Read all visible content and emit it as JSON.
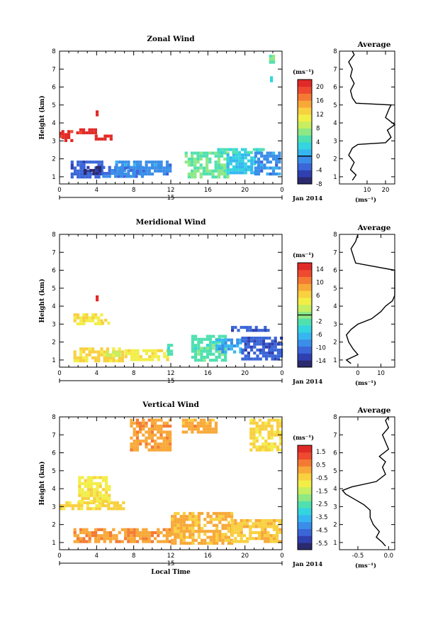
{
  "chart_data": [
    {
      "type": "heatmap",
      "title": "Zonal Wind",
      "xlabel": "",
      "ylabel": "Height (km)",
      "xlim": [
        0,
        24
      ],
      "ylim": [
        0.6,
        8
      ],
      "x_ticks": [
        "0",
        "4",
        "8",
        "12",
        "16",
        "20",
        "0"
      ],
      "y_ticks": [
        "1",
        "2",
        "3",
        "4",
        "5",
        "6",
        "7",
        "8"
      ],
      "date_marker": "15",
      "date_label": "Jan 2014",
      "colorbar": {
        "unit": "(ms⁻¹)",
        "vmin": -8,
        "vmax": 22,
        "tick_values": [
          20,
          16,
          12,
          8,
          4,
          0,
          -4,
          -8
        ],
        "tick_labels": [
          "20",
          "16",
          "12",
          "8",
          "4",
          "0",
          "-4",
          "-8"
        ],
        "zero_line": 0
      },
      "regions": [
        {
          "x": [
            0.2,
            1.4
          ],
          "y": [
            3.1,
            3.6
          ],
          "value": 21
        },
        {
          "x": [
            1.8,
            3.8
          ],
          "y": [
            3.4,
            3.7
          ],
          "value": 21
        },
        {
          "x": [
            3.8,
            5.5
          ],
          "y": [
            3.15,
            3.35
          ],
          "value": 21
        },
        {
          "x": [
            3.9,
            4.1
          ],
          "y": [
            4.4,
            4.7
          ],
          "value": 21
        },
        {
          "x": [
            0.0,
            0.2
          ],
          "y": [
            3.3,
            3.5
          ],
          "value": 21
        },
        {
          "x": [
            1.2,
            4.6
          ],
          "y": [
            1.0,
            1.9
          ],
          "value": -3
        },
        {
          "x": [
            4.6,
            9.0
          ],
          "y": [
            1.0,
            1.6
          ],
          "value": -2
        },
        {
          "x": [
            6.0,
            12.0
          ],
          "y": [
            1.1,
            1.9
          ],
          "value": -1
        },
        {
          "x": [
            2.6,
            4.4
          ],
          "y": [
            1.2,
            1.6
          ],
          "value": -7
        },
        {
          "x": [
            13.5,
            18.0
          ],
          "y": [
            1.0,
            2.4
          ],
          "value": 6
        },
        {
          "x": [
            18.0,
            21.0
          ],
          "y": [
            1.3,
            2.3
          ],
          "value": 2
        },
        {
          "x": [
            17.0,
            22.0
          ],
          "y": [
            2.4,
            2.6
          ],
          "value": 4
        },
        {
          "x": [
            21.0,
            23.8
          ],
          "y": [
            1.2,
            2.4
          ],
          "value": -1
        },
        {
          "x": [
            22.6,
            23.0
          ],
          "y": [
            7.4,
            7.8
          ],
          "value": 6
        },
        {
          "x": [
            22.7,
            22.9
          ],
          "y": [
            6.4,
            6.6
          ],
          "value": 3
        }
      ],
      "average_profile": {
        "title": "Average",
        "xlabel": "(ms⁻¹)",
        "x_ticks": [
          "10",
          "20"
        ],
        "xlim": [
          -5,
          25
        ],
        "heights": [
          0.8,
          1.1,
          1.4,
          1.8,
          2.2,
          2.6,
          2.8,
          2.9,
          3.2,
          3.6,
          3.9,
          4.3,
          4.8,
          5.0,
          5.1,
          5.4,
          5.8,
          6.2,
          6.6,
          7.0,
          7.4,
          7.8,
          8.0
        ],
        "values": [
          2,
          4,
          1,
          3,
          0,
          2,
          5,
          20,
          23,
          21,
          25,
          20,
          22,
          23,
          4,
          2,
          1,
          3,
          1,
          2,
          0,
          3,
          2
        ]
      }
    },
    {
      "type": "heatmap",
      "title": "Meridional Wind",
      "xlabel": "",
      "ylabel": "Height (km)",
      "xlim": [
        0,
        24
      ],
      "ylim": [
        0.6,
        8
      ],
      "x_ticks": [
        "0",
        "4",
        "8",
        "12",
        "16",
        "20",
        "0"
      ],
      "y_ticks": [
        "1",
        "2",
        "3",
        "4",
        "5",
        "6",
        "7",
        "8"
      ],
      "date_marker": "15",
      "date_label": "Jan 2014",
      "colorbar": {
        "unit": "(ms⁻¹)",
        "vmin": -16,
        "vmax": 16,
        "tick_values": [
          14,
          10,
          6,
          2,
          -2,
          -6,
          -10,
          -14
        ],
        "tick_labels": [
          "14",
          "10",
          "6",
          "2",
          "-2",
          "-6",
          "-10",
          "-14"
        ],
        "zero_line": 0
      },
      "regions": [
        {
          "x": [
            1.5,
            4.5
          ],
          "y": [
            3.1,
            3.6
          ],
          "value": 5
        },
        {
          "x": [
            3.9,
            4.1
          ],
          "y": [
            4.4,
            4.6
          ],
          "value": 14
        },
        {
          "x": [
            4.5,
            5.5
          ],
          "y": [
            3.1,
            3.3
          ],
          "value": 5
        },
        {
          "x": [
            0.0,
            0.2
          ],
          "y": [
            3.2,
            3.4
          ],
          "value": 5
        },
        {
          "x": [
            1.5,
            6.7
          ],
          "y": [
            1.0,
            1.7
          ],
          "value": 6
        },
        {
          "x": [
            7.0,
            11.6
          ],
          "y": [
            1.0,
            1.6
          ],
          "value": 5
        },
        {
          "x": [
            5.0,
            6.5
          ],
          "y": [
            1.2,
            1.5
          ],
          "value": 3
        },
        {
          "x": [
            11.6,
            12.2
          ],
          "y": [
            1.4,
            1.9
          ],
          "value": -3
        },
        {
          "x": [
            14.2,
            17.8
          ],
          "y": [
            1.0,
            2.4
          ],
          "value": -2
        },
        {
          "x": [
            16.8,
            19.6
          ],
          "y": [
            1.4,
            2.2
          ],
          "value": -7
        },
        {
          "x": [
            19.6,
            23.8
          ],
          "y": [
            1.1,
            2.3
          ],
          "value": -11
        },
        {
          "x": [
            18.5,
            22.5
          ],
          "y": [
            2.7,
            2.9
          ],
          "value": -11
        }
      ],
      "average_profile": {
        "title": "Average",
        "xlabel": "(ms⁻¹)",
        "x_ticks": [
          "0",
          "10"
        ],
        "xlim": [
          -8,
          16
        ],
        "heights": [
          0.8,
          1.0,
          1.3,
          1.6,
          2.0,
          2.4,
          2.7,
          3.0,
          3.3,
          3.7,
          4.0,
          4.3,
          4.6,
          5.0,
          5.5,
          6.0,
          6.4,
          6.8,
          7.2,
          7.6,
          8.0
        ],
        "values": [
          -3,
          -5,
          0,
          -2,
          -4,
          -5,
          -3,
          0,
          6,
          10,
          12,
          15,
          16,
          16,
          16,
          16,
          -1,
          -2,
          -3,
          -1,
          0
        ]
      }
    },
    {
      "type": "heatmap",
      "title": "Vertical Wind",
      "xlabel": "Local Time",
      "ylabel": "Height (km)",
      "xlim": [
        0,
        24
      ],
      "ylim": [
        0.6,
        8
      ],
      "x_ticks": [
        "0",
        "4",
        "8",
        "12",
        "16",
        "20",
        "0"
      ],
      "y_ticks": [
        "1",
        "2",
        "3",
        "4",
        "5",
        "6",
        "7",
        "8"
      ],
      "date_marker": "15",
      "date_label": "Jan 2014",
      "colorbar": {
        "unit": "(ms⁻¹)",
        "vmin": -6,
        "vmax": 2,
        "tick_values": [
          1.5,
          0.5,
          -0.5,
          -1.5,
          -2.5,
          -3.5,
          -4.5,
          -5.5
        ],
        "tick_labels": [
          "1.5",
          "0.5",
          "-0.5",
          "-1.5",
          "-2.5",
          "-3.5",
          "-4.5",
          "-5.5"
        ],
        "zero_line": null
      },
      "regions": [
        {
          "x": [
            1.5,
            11.8
          ],
          "y": [
            1.0,
            1.8
          ],
          "value": 0.3
        },
        {
          "x": [
            12.0,
            18.5
          ],
          "y": [
            1.0,
            2.7
          ],
          "value": 0.0
        },
        {
          "x": [
            18.5,
            23.8
          ],
          "y": [
            1.0,
            2.3
          ],
          "value": -0.3
        },
        {
          "x": [
            0.0,
            6.8
          ],
          "y": [
            2.9,
            3.3
          ],
          "value": -0.5
        },
        {
          "x": [
            2.0,
            5.5
          ],
          "y": [
            3.3,
            4.7
          ],
          "value": -0.8
        },
        {
          "x": [
            7.6,
            12.0
          ],
          "y": [
            6.2,
            7.9
          ],
          "value": 0.2
        },
        {
          "x": [
            13.2,
            16.8
          ],
          "y": [
            7.2,
            7.9
          ],
          "value": 0.1
        },
        {
          "x": [
            20.5,
            23.8
          ],
          "y": [
            6.2,
            7.9
          ],
          "value": -0.5
        }
      ],
      "average_profile": {
        "title": "Average",
        "xlabel": "(ms⁻¹)",
        "x_ticks": [
          "-0.5",
          "0.0"
        ],
        "xlim": [
          -0.8,
          0.1
        ],
        "heights": [
          0.8,
          1.0,
          1.3,
          1.6,
          2.0,
          2.4,
          2.8,
          3.1,
          3.4,
          3.7,
          3.9,
          4.1,
          4.4,
          4.8,
          5.2,
          5.5,
          5.8,
          6.2,
          6.6,
          7.0,
          7.4,
          7.8,
          8.0
        ],
        "values": [
          -0.05,
          -0.1,
          -0.2,
          -0.15,
          -0.25,
          -0.3,
          -0.3,
          -0.4,
          -0.55,
          -0.7,
          -0.75,
          -0.6,
          -0.2,
          -0.05,
          -0.1,
          -0.05,
          -0.15,
          0.0,
          -0.05,
          -0.1,
          0.0,
          -0.05,
          0.0
        ]
      }
    }
  ],
  "colors": {
    "scale": [
      "#2a2a6e",
      "#3040b0",
      "#3a66d8",
      "#3a8ee8",
      "#36b6f0",
      "#34d4e0",
      "#50e0b0",
      "#8ee884",
      "#c6ee60",
      "#f2ee48",
      "#f8d040",
      "#f8a838",
      "#f47a34",
      "#ee4a30",
      "#e02a28"
    ]
  }
}
